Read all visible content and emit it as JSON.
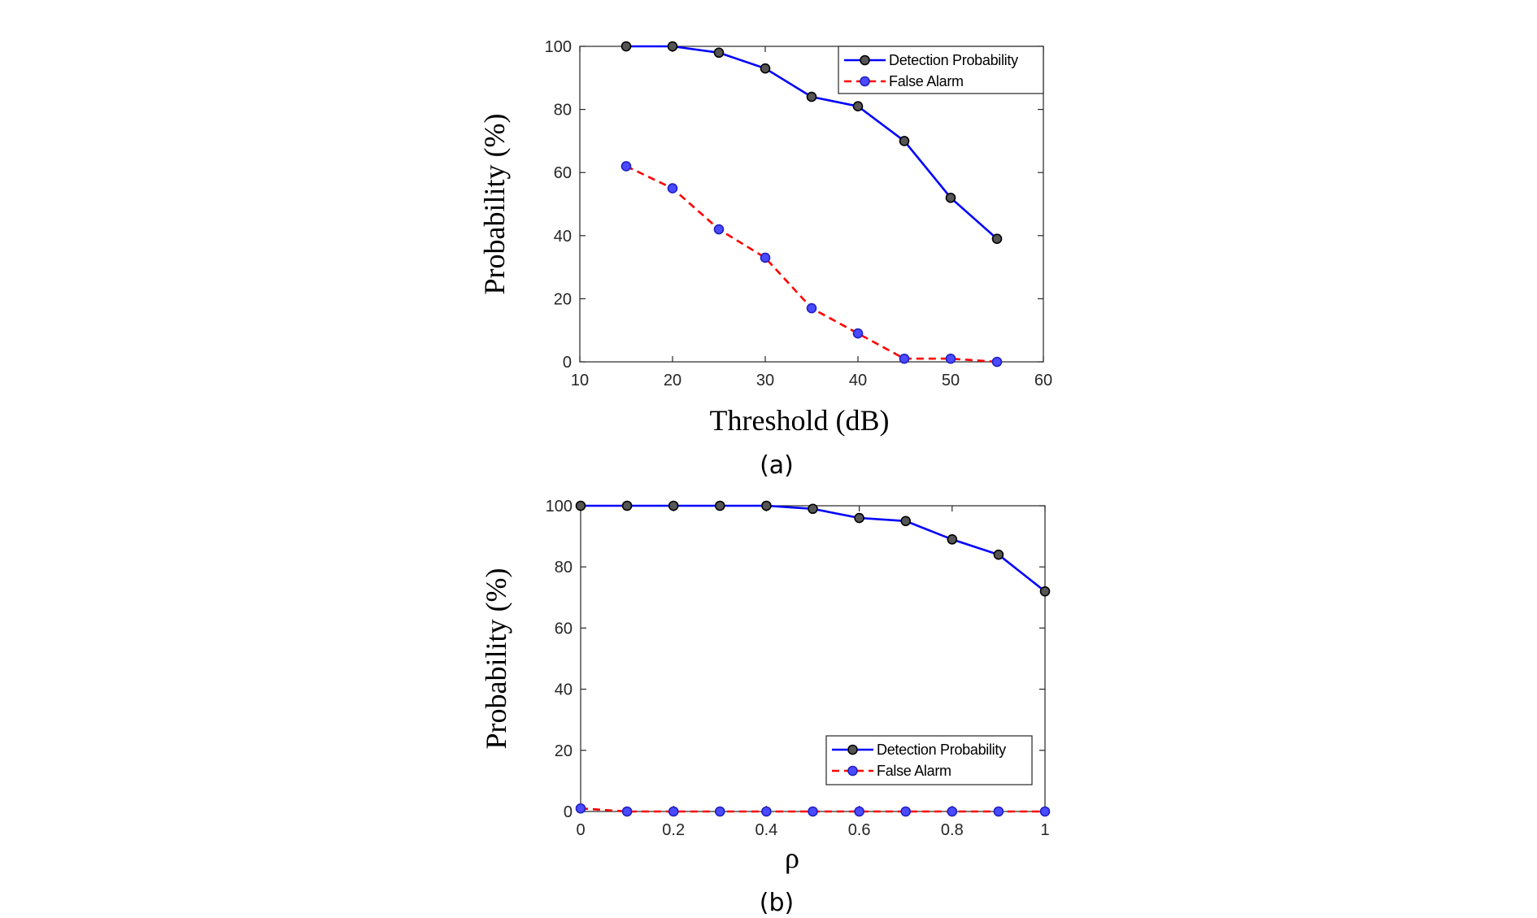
{
  "chart_data": [
    {
      "type": "line",
      "caption": "(a)",
      "xlabel": "Threshold (dB)",
      "ylabel": "Probability (%)",
      "xlim": [
        10,
        60
      ],
      "ylim": [
        0,
        100
      ],
      "xticks": [
        10,
        20,
        30,
        40,
        50,
        60
      ],
      "xtick_labels": [
        "10",
        "20",
        "30",
        "40",
        "50",
        "60"
      ],
      "yticks": [
        0,
        20,
        40,
        60,
        80,
        100
      ],
      "ytick_labels": [
        "0",
        "20",
        "40",
        "60",
        "80",
        "100"
      ],
      "grid": false,
      "legend_position": "top-right",
      "x": [
        15,
        20,
        25,
        30,
        35,
        40,
        45,
        50,
        55
      ],
      "series": [
        {
          "name": "Detection Probability",
          "values": [
            100,
            100,
            98,
            93,
            84,
            81,
            70,
            52,
            39
          ],
          "line_color": "#0000ff",
          "marker_color": "#555555",
          "dashed": false
        },
        {
          "name": "False Alarm",
          "values": [
            62,
            55,
            42,
            33,
            17,
            9,
            1,
            1,
            0
          ],
          "line_color": "#ff0000",
          "marker_color": "#4a4aff",
          "dashed": true
        }
      ]
    },
    {
      "type": "line",
      "caption": "(b)",
      "xlabel": "ρ",
      "ylabel": "Probability (%)",
      "xlim": [
        0,
        1
      ],
      "ylim": [
        0,
        100
      ],
      "xticks": [
        0,
        0.2,
        0.4,
        0.6,
        0.8,
        1
      ],
      "xtick_labels": [
        "0",
        "0.2",
        "0.4",
        "0.6",
        "0.8",
        "1"
      ],
      "yticks": [
        0,
        20,
        40,
        60,
        80,
        100
      ],
      "ytick_labels": [
        "0",
        "20",
        "40",
        "60",
        "80",
        "100"
      ],
      "grid": false,
      "legend_position": "bottom-right",
      "x": [
        0,
        0.1,
        0.2,
        0.3,
        0.4,
        0.5,
        0.6,
        0.7,
        0.8,
        0.9,
        1.0
      ],
      "series": [
        {
          "name": "Detection Probability",
          "values": [
            100,
            100,
            100,
            100,
            100,
            99,
            96,
            95,
            89,
            84,
            72
          ],
          "line_color": "#0000ff",
          "marker_color": "#555555",
          "dashed": false
        },
        {
          "name": "False Alarm",
          "values": [
            1,
            0,
            0,
            0,
            0,
            0,
            0,
            0,
            0,
            0,
            0
          ],
          "line_color": "#ff0000",
          "marker_color": "#4a4aff",
          "dashed": true
        }
      ]
    }
  ]
}
